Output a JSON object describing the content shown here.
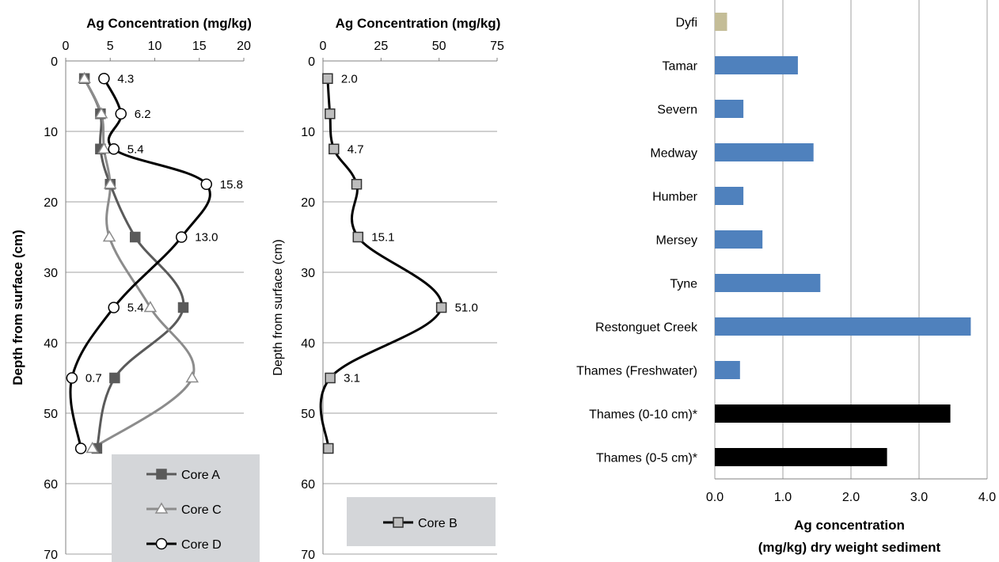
{
  "chart_data": [
    {
      "type": "line",
      "xlabel": "Ag Concentration (mg/kg)",
      "ylabel": "Depth from surface (cm)",
      "xlim": [
        0,
        20
      ],
      "ylim": [
        0,
        70
      ],
      "x_ticks": [
        "0",
        "5",
        "10",
        "15",
        "20"
      ],
      "y_ticks": [
        "0",
        "10",
        "20",
        "30",
        "40",
        "50",
        "60",
        "70"
      ],
      "legend_position": "bottom-right",
      "series": [
        {
          "name": "Core A",
          "marker": "square",
          "color": "#5a5a5a",
          "points": [
            {
              "x": 2.1,
              "y": 2.5
            },
            {
              "x": 3.9,
              "y": 7.5
            },
            {
              "x": 3.9,
              "y": 12.5
            },
            {
              "x": 5.0,
              "y": 17.5
            },
            {
              "x": 7.8,
              "y": 25
            },
            {
              "x": 13.2,
              "y": 35
            },
            {
              "x": 5.5,
              "y": 45
            },
            {
              "x": 3.5,
              "y": 55
            }
          ]
        },
        {
          "name": "Core C",
          "marker": "triangle",
          "color": "#8c8c8c",
          "points": [
            {
              "x": 2.1,
              "y": 2.5
            },
            {
              "x": 4.0,
              "y": 7.5
            },
            {
              "x": 4.3,
              "y": 12.5
            },
            {
              "x": 5.0,
              "y": 17.5
            },
            {
              "x": 4.9,
              "y": 25
            },
            {
              "x": 9.5,
              "y": 35
            },
            {
              "x": 14.2,
              "y": 45
            },
            {
              "x": 3.0,
              "y": 55
            }
          ]
        },
        {
          "name": "Core D",
          "marker": "circle",
          "color": "#000000",
          "points": [
            {
              "x": 4.3,
              "y": 2.5
            },
            {
              "x": 6.2,
              "y": 7.5
            },
            {
              "x": 5.4,
              "y": 12.5
            },
            {
              "x": 15.8,
              "y": 17.5
            },
            {
              "x": 13.0,
              "y": 25
            },
            {
              "x": 5.4,
              "y": 35
            },
            {
              "x": 0.7,
              "y": 45
            },
            {
              "x": 1.7,
              "y": 55
            }
          ]
        }
      ],
      "data_labels": [
        {
          "text": "4.3",
          "x": 4.3,
          "y": 2.5
        },
        {
          "text": "6.2",
          "x": 6.2,
          "y": 7.5
        },
        {
          "text": "5.4",
          "x": 5.4,
          "y": 12.5
        },
        {
          "text": "15.8",
          "x": 15.8,
          "y": 17.5
        },
        {
          "text": "13.0",
          "x": 13.0,
          "y": 25
        },
        {
          "text": "5.4",
          "x": 5.4,
          "y": 35
        },
        {
          "text": "0.7",
          "x": 0.7,
          "y": 45
        }
      ]
    },
    {
      "type": "line",
      "xlabel": "Ag Concentration (mg/kg)",
      "ylabel": "Depth from surface (cm)",
      "xlim": [
        0,
        75
      ],
      "ylim": [
        0,
        70
      ],
      "x_ticks": [
        "0",
        "25",
        "50",
        "75"
      ],
      "y_ticks": [
        "0",
        "10",
        "20",
        "30",
        "40",
        "50",
        "60",
        "70"
      ],
      "legend_position": "bottom-right",
      "series": [
        {
          "name": "Core B",
          "marker": "square",
          "color": "#000000",
          "points": [
            {
              "x": 2.0,
              "y": 2.5
            },
            {
              "x": 3.0,
              "y": 7.5
            },
            {
              "x": 4.7,
              "y": 12.5
            },
            {
              "x": 14.5,
              "y": 17.5
            },
            {
              "x": 15.1,
              "y": 25
            },
            {
              "x": 51.0,
              "y": 35
            },
            {
              "x": 3.1,
              "y": 45
            },
            {
              "x": 2.3,
              "y": 55
            }
          ]
        }
      ],
      "data_labels": [
        {
          "text": "2.0",
          "x": 2.0,
          "y": 2.5
        },
        {
          "text": "4.7",
          "x": 4.7,
          "y": 12.5
        },
        {
          "text": "15.1",
          "x": 15.1,
          "y": 25
        },
        {
          "text": "51.0",
          "x": 51.0,
          "y": 35
        },
        {
          "text": "3.1",
          "x": 3.1,
          "y": 45
        }
      ]
    },
    {
      "type": "bar",
      "orientation": "horizontal",
      "xlabel": "Ag concentration",
      "xlabel_line2": "(mg/kg) dry weight sediment",
      "xlim": [
        0,
        4
      ],
      "x_ticks": [
        "0.0",
        "1.0",
        "2.0",
        "3.0",
        "4.0"
      ],
      "categories": [
        "Dyfi",
        "Tamar",
        "Severn",
        "Medway",
        "Humber",
        "Mersey",
        "Tyne",
        "Restonguet Creek",
        "Thames (Freshwater)",
        "Thames (0-10 cm)*",
        "Thames (0-5 cm)*"
      ],
      "values": [
        0.18,
        1.22,
        0.42,
        1.45,
        0.42,
        0.7,
        1.55,
        3.76,
        0.37,
        3.46,
        2.53
      ],
      "colors": [
        "#c4bd97",
        "#4f81bd",
        "#4f81bd",
        "#4f81bd",
        "#4f81bd",
        "#4f81bd",
        "#4f81bd",
        "#4f81bd",
        "#4f81bd",
        "#000000",
        "#000000"
      ]
    }
  ]
}
